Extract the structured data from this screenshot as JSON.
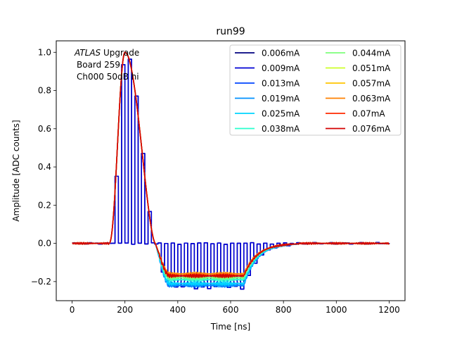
{
  "chart_data": {
    "type": "line",
    "title": "run99",
    "xlabel": "Time [ns]",
    "ylabel": "Amplitude [ADC counts]",
    "xlim": [
      -60,
      1260
    ],
    "ylim": [
      -0.3,
      1.06
    ],
    "xticks": [
      0,
      200,
      400,
      600,
      800,
      1000,
      1200
    ],
    "yticks": [
      -0.2,
      0.0,
      0.2,
      0.4,
      0.6,
      0.8,
      1.0
    ],
    "ytick_labels": [
      "−0.2",
      "0.0",
      "0.2",
      "0.4",
      "0.6",
      "0.8",
      "1.0"
    ],
    "grid": false,
    "legend_position": "top-right",
    "legend_columns": 2,
    "annotation": {
      "line1_italic": "ATLAS",
      "line1_rest": " Upgrade",
      "line2": "Board 259",
      "line3": "Ch000 50dB hi"
    },
    "pulse_model": {
      "baseline": 0.0,
      "rise_start_ns": 140,
      "peak_ns": 200,
      "peak_amplitude": 1.0,
      "zero_cross_ns": 315,
      "undershoot_start_ns": 330,
      "undershoot_end_ns": 690,
      "recovery_end_ns": 860,
      "end_ns": 1200
    },
    "series": [
      {
        "name": "0.006mA",
        "color": "#00007f",
        "undershoot": -0.23,
        "gated": true,
        "gate_period_ns": 25
      },
      {
        "name": "0.009mA",
        "color": "#0000d4",
        "undershoot": -0.23,
        "gated": true,
        "gate_period_ns": 25
      },
      {
        "name": "0.013mA",
        "color": "#0044ff",
        "undershoot": -0.22,
        "gated": false
      },
      {
        "name": "0.019mA",
        "color": "#0090ff",
        "undershoot": -0.22,
        "gated": false
      },
      {
        "name": "0.025mA",
        "color": "#00d4ff",
        "undershoot": -0.21,
        "gated": false
      },
      {
        "name": "0.038mA",
        "color": "#29ffce",
        "undershoot": -0.19,
        "gated": false
      },
      {
        "name": "0.044mA",
        "color": "#7dff7a",
        "undershoot": -0.18,
        "gated": false
      },
      {
        "name": "0.051mA",
        "color": "#ceff29",
        "undershoot": -0.17,
        "gated": false
      },
      {
        "name": "0.057mA",
        "color": "#ffc400",
        "undershoot": -0.16,
        "gated": false
      },
      {
        "name": "0.063mA",
        "color": "#ff8100",
        "undershoot": -0.16,
        "gated": false
      },
      {
        "name": "0.07mA",
        "color": "#ff2a00",
        "undershoot": -0.17,
        "gated": false
      },
      {
        "name": "0.076mA",
        "color": "#d40000",
        "undershoot": -0.17,
        "gated": false
      }
    ]
  }
}
